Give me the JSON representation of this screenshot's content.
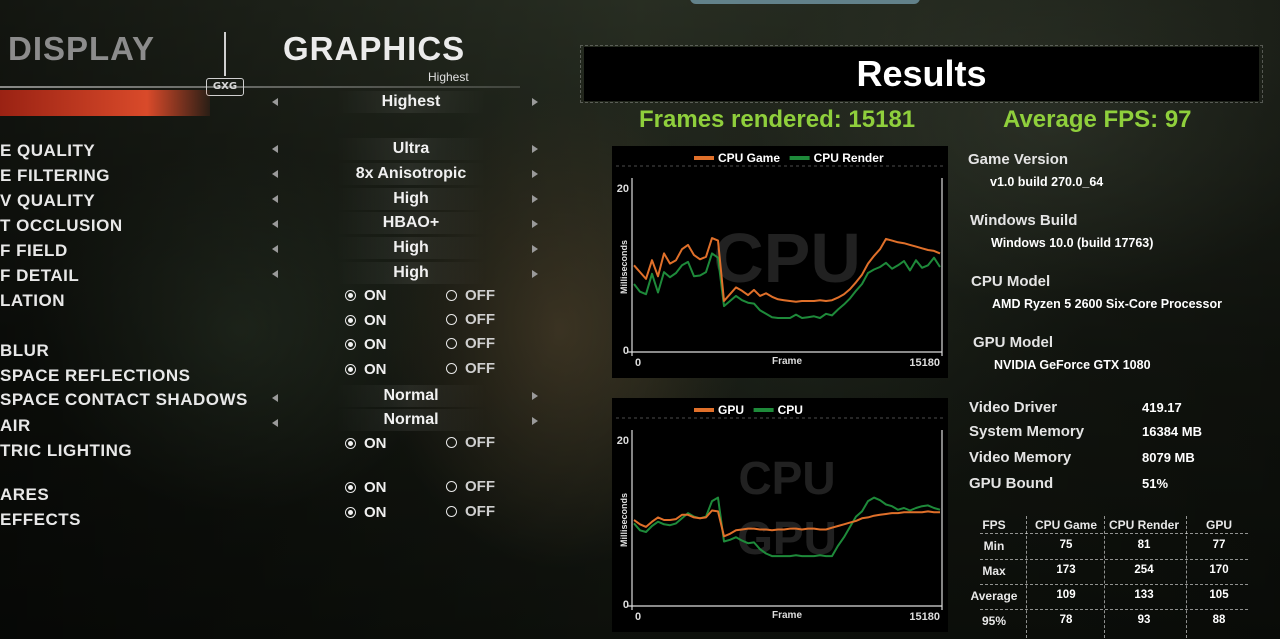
{
  "menu": {
    "tabs": [
      "DISPLAY",
      "GRAPHICS"
    ],
    "badge": "GXG",
    "preset_sub": "Highest",
    "settings": [
      {
        "label": "",
        "value": "Highest",
        "kind": "select"
      },
      {
        "label": "E QUALITY",
        "value": "Ultra",
        "kind": "select"
      },
      {
        "label": "E FILTERING",
        "value": "8x Anisotropic",
        "kind": "select"
      },
      {
        "label": "V QUALITY",
        "value": "High",
        "kind": "select"
      },
      {
        "label": "T OCCLUSION",
        "value": "HBAO+",
        "kind": "select"
      },
      {
        "label": "F FIELD",
        "value": "High",
        "kind": "select"
      },
      {
        "label": "F DETAIL",
        "value": "High",
        "kind": "select"
      },
      {
        "label": "LATION",
        "value": "ON",
        "kind": "toggle"
      },
      {
        "label": "",
        "value": "ON",
        "kind": "toggle"
      },
      {
        "label": "BLUR",
        "value": "ON",
        "kind": "toggle"
      },
      {
        "label": "SPACE REFLECTIONS",
        "value": "ON",
        "kind": "toggle"
      },
      {
        "label": "SPACE CONTACT SHADOWS",
        "value": "Normal",
        "kind": "select"
      },
      {
        "label": "AIR",
        "value": "Normal",
        "kind": "select"
      },
      {
        "label": "TRIC LIGHTING",
        "value": "ON",
        "kind": "toggle"
      },
      {
        "label": "ARES",
        "value": "ON",
        "kind": "toggle"
      },
      {
        "label": "EFFECTS",
        "value": "ON",
        "kind": "toggle"
      }
    ],
    "on_label": "ON",
    "off_label": "OFF"
  },
  "results": {
    "title": "Results",
    "frames_rendered": "Frames rendered: 15181",
    "average_fps": "Average FPS: 97"
  },
  "chart_data": [
    {
      "type": "line",
      "title": "",
      "xlabel": "Frame",
      "ylabel": "Milliseconds",
      "watermark": "CPU",
      "x_ticks": [
        "0",
        "15180"
      ],
      "y_ticks": [
        "0",
        "20"
      ],
      "ylim": [
        0,
        20
      ],
      "xlim": [
        0,
        15180
      ],
      "legend_position": "top",
      "series": [
        {
          "name": "CPU Game",
          "color": "#e0702a",
          "values": [
            10.2,
            9.4,
            8.6,
            10.8,
            8.9,
            11.6,
            10.4,
            10.8,
            12.1,
            12.6,
            11.4,
            10.9,
            11.2,
            13.4,
            13.1,
            6.0,
            6.8,
            7.6,
            7.2,
            6.7,
            7.3,
            6.6,
            6.9,
            6.5,
            6.2,
            6.1,
            6.0,
            5.9,
            6.0,
            6.0,
            6.0,
            6.1,
            6.0,
            6.1,
            6.4,
            6.8,
            7.4,
            8.2,
            9.1,
            10.4,
            11.3,
            12.1,
            13.3,
            13.1,
            12.9,
            12.8,
            12.6,
            12.4,
            12.2,
            12.0,
            11.9,
            11.6
          ]
        },
        {
          "name": "CPU Render",
          "color": "#1e8a3a",
          "values": [
            8.0,
            7.1,
            6.8,
            9.2,
            7.0,
            9.4,
            8.8,
            9.3,
            10.2,
            10.6,
            8.9,
            9.0,
            9.4,
            11.6,
            11.1,
            5.4,
            6.0,
            6.6,
            6.1,
            5.8,
            5.7,
            4.9,
            4.5,
            4.1,
            4.0,
            4.0,
            4.0,
            4.4,
            4.0,
            4.1,
            4.2,
            4.0,
            4.5,
            4.3,
            5.0,
            5.6,
            6.3,
            7.2,
            8.0,
            9.3,
            9.7,
            10.0,
            10.5,
            9.8,
            10.2,
            10.7,
            9.6,
            10.8,
            9.9,
            10.2,
            11.1,
            10.0
          ]
        }
      ]
    },
    {
      "type": "line",
      "title": "",
      "xlabel": "Frame",
      "ylabel": "Milliseconds",
      "watermark": "CPU GPU",
      "x_ticks": [
        "0",
        "15180"
      ],
      "y_ticks": [
        "0",
        "20"
      ],
      "ylim": [
        0,
        20
      ],
      "xlim": [
        0,
        15180
      ],
      "legend_position": "top",
      "series": [
        {
          "name": "GPU",
          "color": "#e0702a",
          "values": [
            10.0,
            9.5,
            9.2,
            9.8,
            10.3,
            10.0,
            10.0,
            10.1,
            10.6,
            10.6,
            10.3,
            10.2,
            10.3,
            11.1,
            11.0,
            8.1,
            8.4,
            8.8,
            8.9,
            9.0,
            9.0,
            8.9,
            8.9,
            8.8,
            8.9,
            8.9,
            9.0,
            9.0,
            8.9,
            9.0,
            9.0,
            8.9,
            8.9,
            9.1,
            9.3,
            9.5,
            9.7,
            9.9,
            10.2,
            10.3,
            10.5,
            10.6,
            10.7,
            10.8,
            10.8,
            10.9,
            10.9,
            10.9,
            10.9,
            11.0,
            10.9,
            10.9
          ]
        },
        {
          "name": "CPU",
          "color": "#1e8a3a",
          "values": [
            9.6,
            8.8,
            8.6,
            9.3,
            9.8,
            9.5,
            9.4,
            9.6,
            10.2,
            10.8,
            10.4,
            10.2,
            10.4,
            12.2,
            12.6,
            7.5,
            7.7,
            8.0,
            7.6,
            7.3,
            7.4,
            6.6,
            6.1,
            5.8,
            5.8,
            5.8,
            5.8,
            5.9,
            5.8,
            5.8,
            5.8,
            5.9,
            5.8,
            5.8,
            7.0,
            8.0,
            9.2,
            10.4,
            11.0,
            12.2,
            12.6,
            12.3,
            11.8,
            11.6,
            11.2,
            11.4,
            11.1,
            11.4,
            11.6,
            11.7,
            11.4,
            11.2
          ]
        }
      ]
    }
  ],
  "system_info": {
    "game_version_label": "Game Version",
    "game_version": "v1.0 build 270.0_64",
    "windows_build_label": "Windows Build",
    "windows_build": "Windows 10.0 (build 17763)",
    "cpu_model_label": "CPU Model",
    "cpu_model": "AMD Ryzen 5 2600 Six-Core Processor",
    "gpu_model_label": "GPU Model",
    "gpu_model": "NVIDIA GeForce GTX 1080",
    "stats": [
      {
        "label": "Video Driver",
        "value": "419.17"
      },
      {
        "label": "System Memory",
        "value": "16384 MB"
      },
      {
        "label": "Video Memory",
        "value": "8079 MB"
      },
      {
        "label": "GPU Bound",
        "value": "51%"
      }
    ]
  },
  "fps_table": {
    "headers": [
      "FPS",
      "CPU Game",
      "CPU Render",
      "GPU"
    ],
    "rows": [
      {
        "label": "Min",
        "values": [
          "75",
          "81",
          "77"
        ]
      },
      {
        "label": "Max",
        "values": [
          "173",
          "254",
          "170"
        ]
      },
      {
        "label": "Average",
        "values": [
          "109",
          "133",
          "105"
        ]
      },
      {
        "label": "95%",
        "values": [
          "78",
          "93",
          "88"
        ]
      }
    ]
  }
}
